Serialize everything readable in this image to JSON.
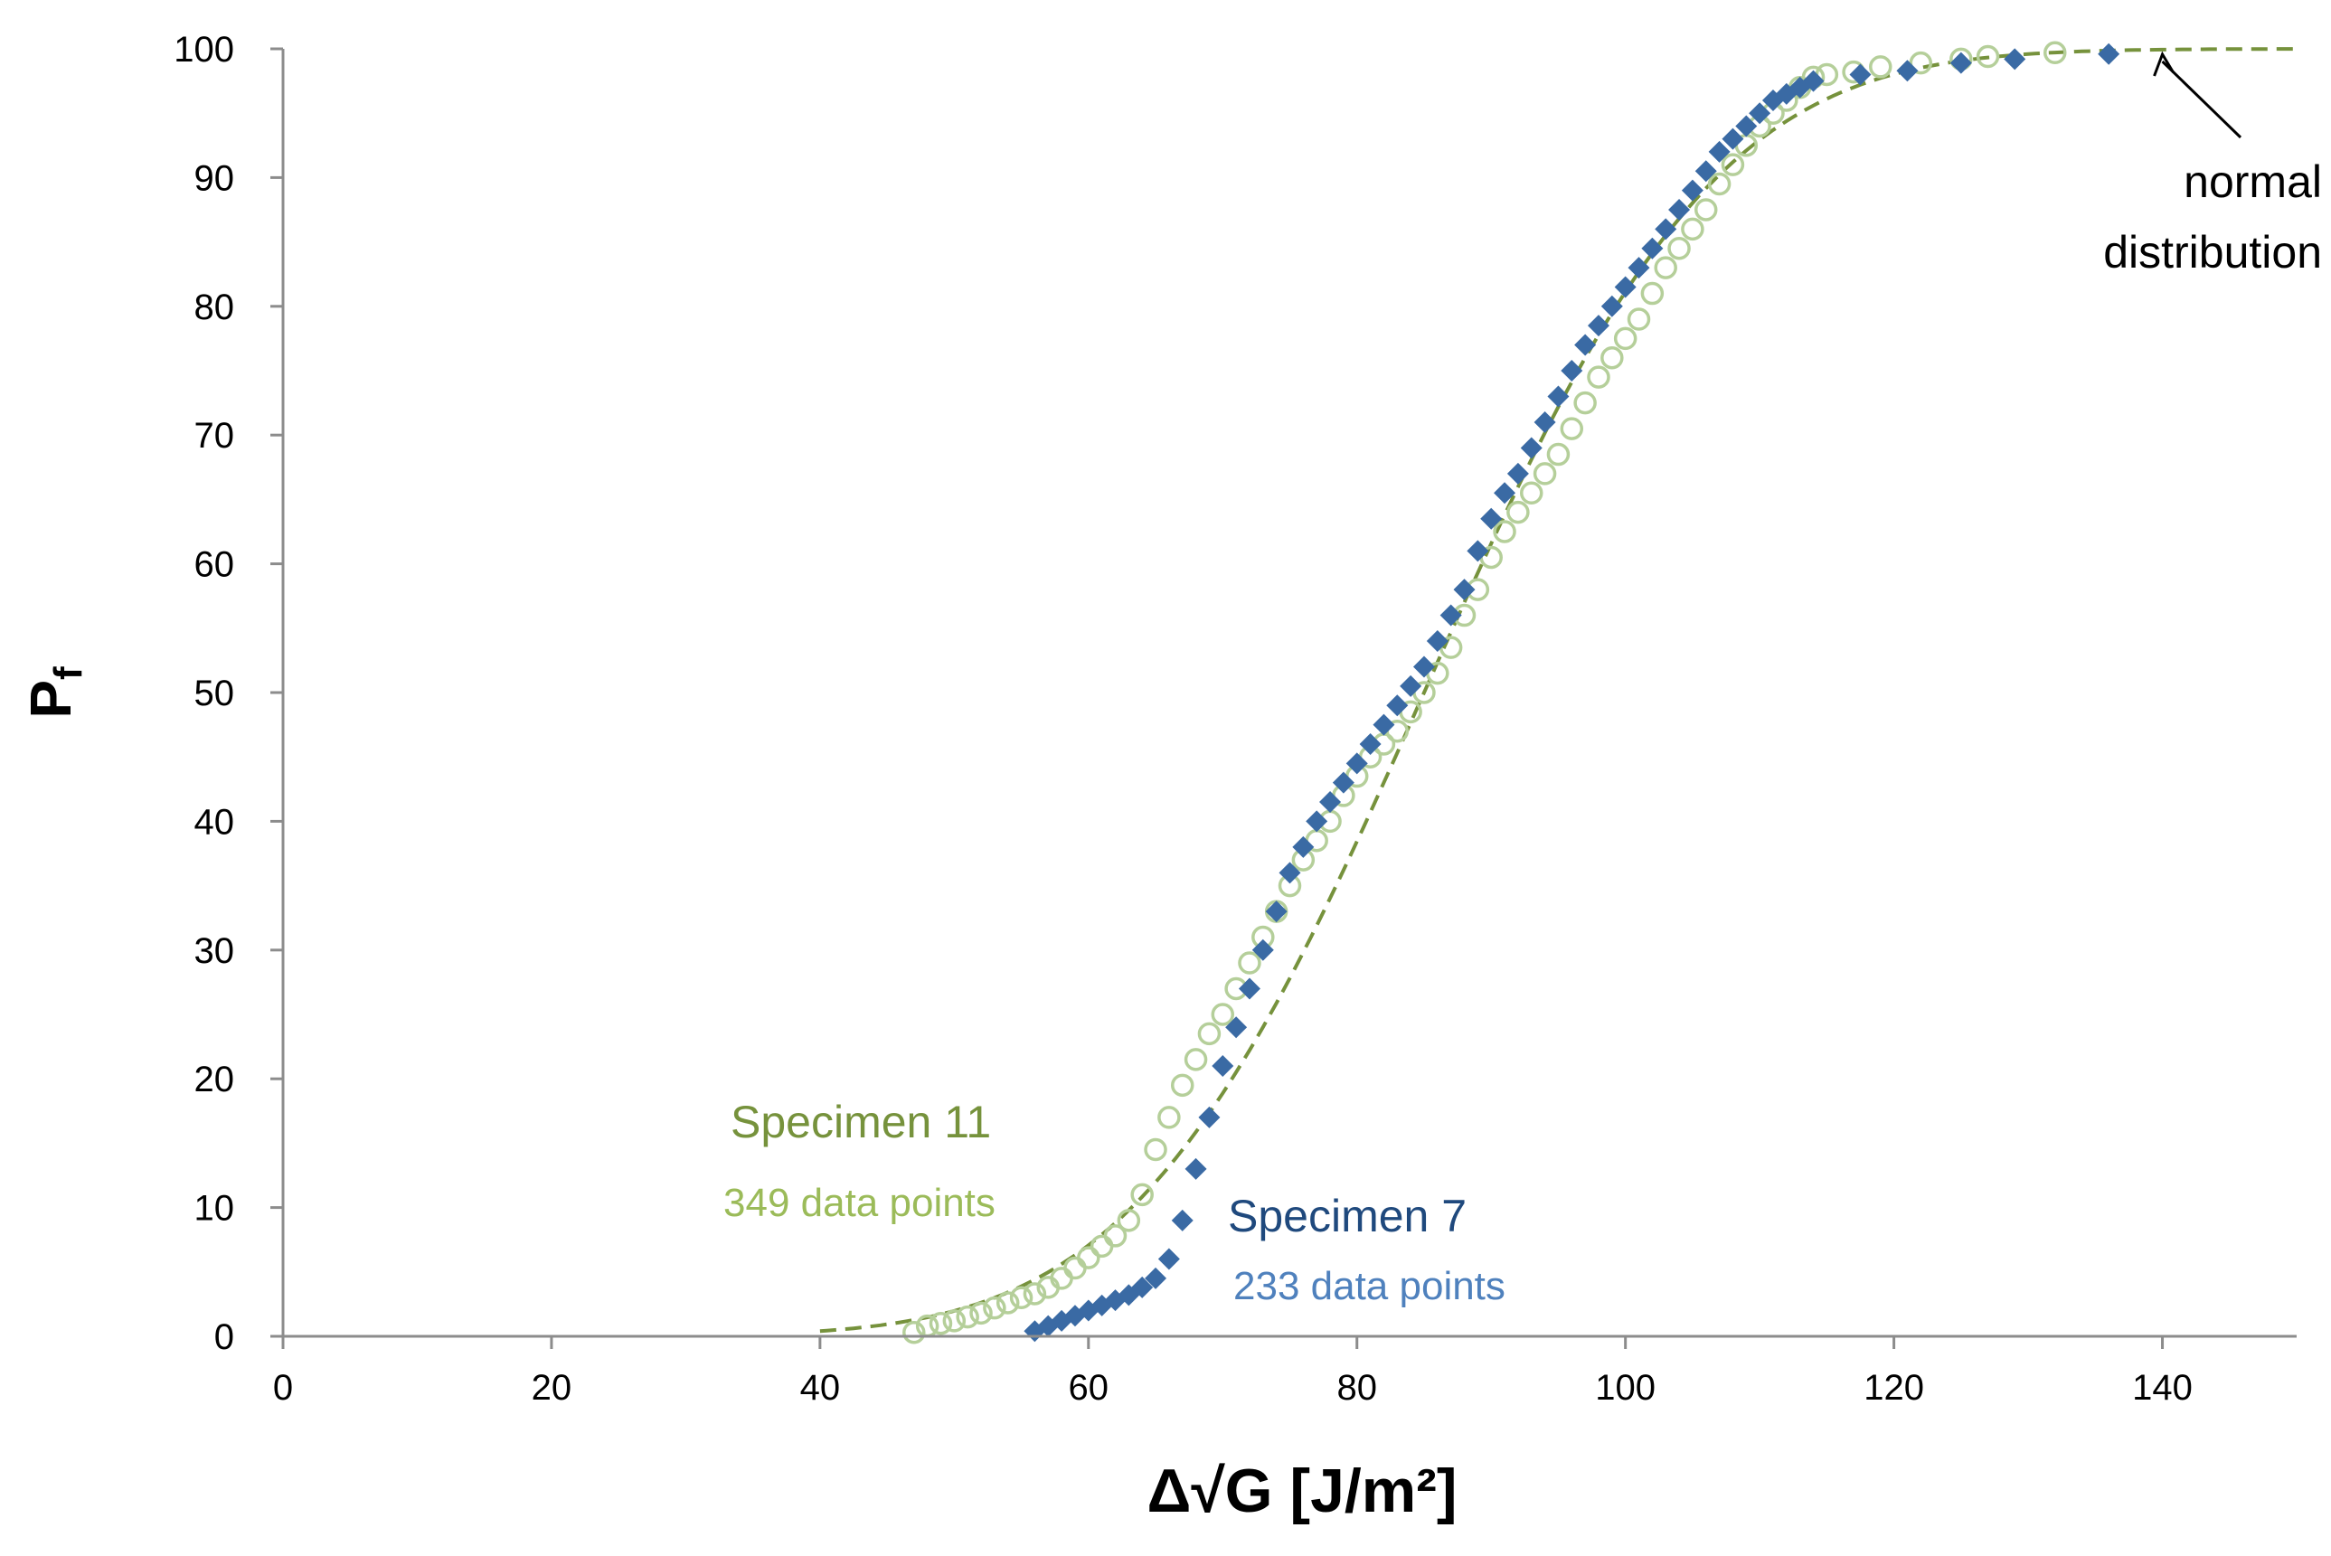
{
  "chart_data": {
    "type": "scatter",
    "title": "",
    "xlabel": "Δ√G [J/m²]",
    "ylabel_main": "P",
    "ylabel_sub": "f",
    "xlim": [
      0,
      150
    ],
    "ylim": [
      0,
      100
    ],
    "x_ticks": [
      0,
      20,
      40,
      60,
      80,
      100,
      120,
      140
    ],
    "y_ticks": [
      0,
      10,
      20,
      30,
      40,
      50,
      60,
      70,
      80,
      90,
      100
    ],
    "grid": false,
    "colors": {
      "spec11": "#b5cf9a",
      "spec7": "#3a6aa4",
      "fit": "#76923c",
      "spec11_label": "#76923c",
      "spec11_sub": "#9bbb59",
      "spec7_label": "#1f497d",
      "spec7_sub": "#4f81bd",
      "axis": "#8c8c8c"
    },
    "series": [
      {
        "name": "Specimen 11",
        "marker": "open-circle",
        "count_label": "349 data points",
        "points": [
          [
            47,
            0.3
          ],
          [
            48,
            0.8
          ],
          [
            49,
            1.0
          ],
          [
            50,
            1.2
          ],
          [
            51,
            1.5
          ],
          [
            52,
            1.8
          ],
          [
            53,
            2.2
          ],
          [
            54,
            2.6
          ],
          [
            55,
            3.0
          ],
          [
            56,
            3.3
          ],
          [
            57,
            3.8
          ],
          [
            58,
            4.5
          ],
          [
            59,
            5.3
          ],
          [
            60,
            6.1
          ],
          [
            61,
            7.0
          ],
          [
            62,
            7.8
          ],
          [
            63,
            9.0
          ],
          [
            64,
            11.0
          ],
          [
            65,
            14.5
          ],
          [
            66,
            17.0
          ],
          [
            67,
            19.5
          ],
          [
            68,
            21.5
          ],
          [
            69,
            23.5
          ],
          [
            70,
            25.0
          ],
          [
            71,
            27.0
          ],
          [
            72,
            29.0
          ],
          [
            73,
            31.0
          ],
          [
            74,
            33.0
          ],
          [
            75,
            35.0
          ],
          [
            76,
            37.0
          ],
          [
            77,
            38.5
          ],
          [
            78,
            40.0
          ],
          [
            79,
            42.0
          ],
          [
            80,
            43.5
          ],
          [
            81,
            45.0
          ],
          [
            82,
            46.0
          ],
          [
            83,
            47.0
          ],
          [
            84,
            48.5
          ],
          [
            85,
            50.0
          ],
          [
            86,
            51.5
          ],
          [
            87,
            53.5
          ],
          [
            88,
            56.0
          ],
          [
            89,
            58.0
          ],
          [
            90,
            60.5
          ],
          [
            91,
            62.5
          ],
          [
            92,
            64.0
          ],
          [
            93,
            65.5
          ],
          [
            94,
            67.0
          ],
          [
            95,
            68.5
          ],
          [
            96,
            70.5
          ],
          [
            97,
            72.5
          ],
          [
            98,
            74.5
          ],
          [
            99,
            76.0
          ],
          [
            100,
            77.5
          ],
          [
            101,
            79.0
          ],
          [
            102,
            81.0
          ],
          [
            103,
            83.0
          ],
          [
            104,
            84.5
          ],
          [
            105,
            86.0
          ],
          [
            106,
            87.5
          ],
          [
            107,
            89.5
          ],
          [
            108,
            91.0
          ],
          [
            109,
            92.5
          ],
          [
            110,
            94.0
          ],
          [
            111,
            95.0
          ],
          [
            112,
            96.0
          ],
          [
            113,
            97.0
          ],
          [
            114,
            97.8
          ],
          [
            115,
            98.0
          ],
          [
            117,
            98.2
          ],
          [
            119,
            98.6
          ],
          [
            122,
            98.9
          ],
          [
            125,
            99.2
          ],
          [
            127,
            99.4
          ],
          [
            132,
            99.7
          ]
        ]
      },
      {
        "name": "Specimen 7",
        "marker": "filled-diamond",
        "count_label": "233 data points",
        "points": [
          [
            56,
            0.4
          ],
          [
            57,
            0.8
          ],
          [
            58,
            1.2
          ],
          [
            59,
            1.6
          ],
          [
            60,
            2.0
          ],
          [
            61,
            2.4
          ],
          [
            62,
            2.8
          ],
          [
            63,
            3.2
          ],
          [
            64,
            3.8
          ],
          [
            65,
            4.5
          ],
          [
            66,
            6.0
          ],
          [
            67,
            9.0
          ],
          [
            68,
            13.0
          ],
          [
            69,
            17.0
          ],
          [
            70,
            21.0
          ],
          [
            71,
            24.0
          ],
          [
            72,
            27.0
          ],
          [
            73,
            30.0
          ],
          [
            74,
            33.0
          ],
          [
            75,
            36.0
          ],
          [
            76,
            38.0
          ],
          [
            77,
            40.0
          ],
          [
            78,
            41.5
          ],
          [
            79,
            43.0
          ],
          [
            80,
            44.5
          ],
          [
            81,
            46.0
          ],
          [
            82,
            47.5
          ],
          [
            83,
            49.0
          ],
          [
            84,
            50.5
          ],
          [
            85,
            52.0
          ],
          [
            86,
            54.0
          ],
          [
            87,
            56.0
          ],
          [
            88,
            58.0
          ],
          [
            89,
            61.0
          ],
          [
            90,
            63.5
          ],
          [
            91,
            65.5
          ],
          [
            92,
            67.0
          ],
          [
            93,
            69.0
          ],
          [
            94,
            71.0
          ],
          [
            95,
            73.0
          ],
          [
            96,
            75.0
          ],
          [
            97,
            77.0
          ],
          [
            98,
            78.5
          ],
          [
            99,
            80.0
          ],
          [
            100,
            81.5
          ],
          [
            101,
            83.0
          ],
          [
            102,
            84.5
          ],
          [
            103,
            86.0
          ],
          [
            104,
            87.5
          ],
          [
            105,
            89.0
          ],
          [
            106,
            90.5
          ],
          [
            107,
            92.0
          ],
          [
            108,
            93.0
          ],
          [
            109,
            94.0
          ],
          [
            110,
            95.0
          ],
          [
            111,
            96.0
          ],
          [
            112,
            96.5
          ],
          [
            113,
            97.0
          ],
          [
            114,
            97.5
          ],
          [
            117.5,
            98.0
          ],
          [
            121,
            98.3
          ],
          [
            125,
            98.9
          ],
          [
            129,
            99.2
          ],
          [
            136,
            99.6
          ]
        ]
      }
    ],
    "fit": {
      "name": "normal distribution",
      "style": "dashed",
      "mean": 85,
      "std": 17,
      "x_range": [
        40,
        150
      ]
    },
    "annotations": {
      "normal_line1": "normal",
      "normal_line2": "distribution",
      "arrow_target": [
        140,
        100
      ]
    }
  }
}
